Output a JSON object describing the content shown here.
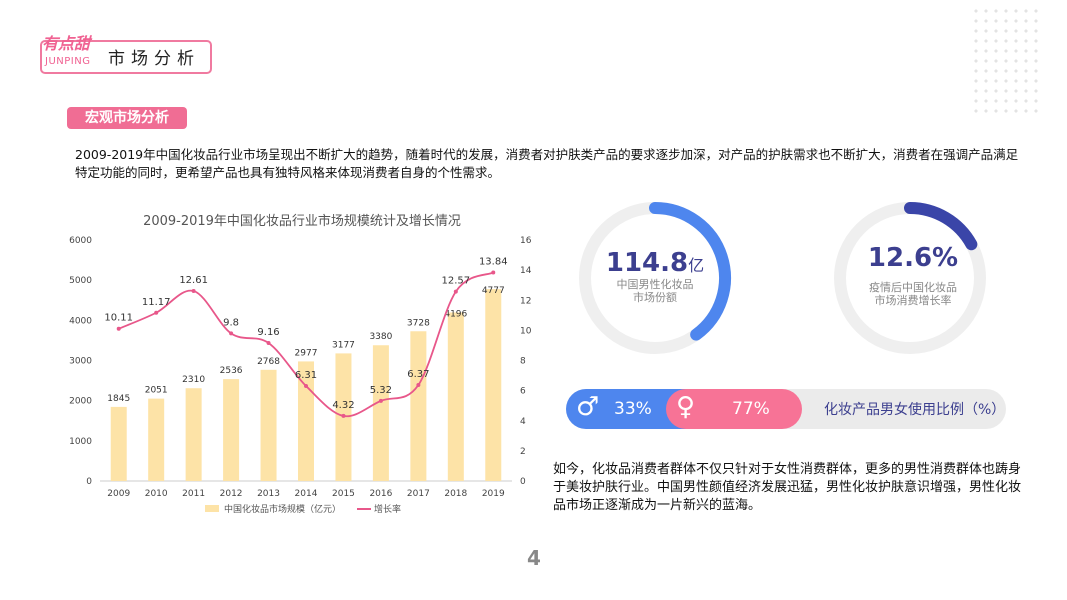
{
  "header": {
    "logo_script": "有点甜",
    "logo_en": "JUNPING",
    "title": "市场分析"
  },
  "badge": "宏观市场分析",
  "intro": "2009-2019年中国化妆品行业市场呈现出不断扩大的趋势，随着时代的发展，消费者对护肤类产品的要求逐步加深，对产品的护肤需求也不断扩大，消费者在强调产品满足特定功能的同时，更希望产品也具有独特风格来体现消费者自身的个性需求。",
  "chart_data": {
    "type": "bar+line",
    "title": "2009-2019年中国化妆品行业市场规模统计及增长情况",
    "categories": [
      "2009",
      "2010",
      "2011",
      "2012",
      "2013",
      "2014",
      "2015",
      "2016",
      "2017",
      "2018",
      "2019"
    ],
    "series": [
      {
        "name": "中国化妆品市场规模（亿元）",
        "type": "bar",
        "axis": "left",
        "color": "#fde3a7",
        "values": [
          1845,
          2051,
          2310,
          2536,
          2768,
          2977,
          3177,
          3380,
          3728,
          4196,
          4777
        ]
      },
      {
        "name": "增长率",
        "type": "line",
        "axis": "right",
        "color": "#e8578a",
        "values": [
          10.11,
          11.17,
          12.61,
          9.8,
          9.16,
          6.31,
          4.32,
          5.32,
          6.37,
          12.57,
          13.84
        ]
      }
    ],
    "ylim_left": [
      0,
      6000
    ],
    "yticks_left": [
      "0",
      "1000",
      "2000",
      "3000",
      "4000",
      "5000",
      "6000"
    ],
    "ylim_right": [
      0,
      16
    ],
    "yticks_right": [
      "0",
      "2",
      "4",
      "6",
      "8",
      "10",
      "12",
      "14",
      "16"
    ],
    "grid": false,
    "legend": "bottom"
  },
  "rings": [
    {
      "value": "114.8",
      "unit": "亿",
      "label1": "中国男性化妆品",
      "label2": "市场份额",
      "fraction": 0.4,
      "color": "#4e86ee"
    },
    {
      "value": "12.6%",
      "unit": "",
      "label1": "疫情后中国化妆品",
      "label2": "市场消费增长率",
      "fraction": 0.17,
      "color": "#3a45a8"
    }
  ],
  "ratio": {
    "male": "33%",
    "female": "77%",
    "label": "化妆产品男女使用比例（%）",
    "male_color": "#4e86ee",
    "female_color": "#f77396"
  },
  "paragraph": "如今，化妆品消费者群体不仅只针对于女性消费群体，更多的男性消费群体也踌身于美妆护肤行业。中国男性颜值经济发展迅猛，男性化妆护肤意识增强，男性化妆品市场正逐渐成为一片新兴的蓝海。",
  "page_number": "4"
}
